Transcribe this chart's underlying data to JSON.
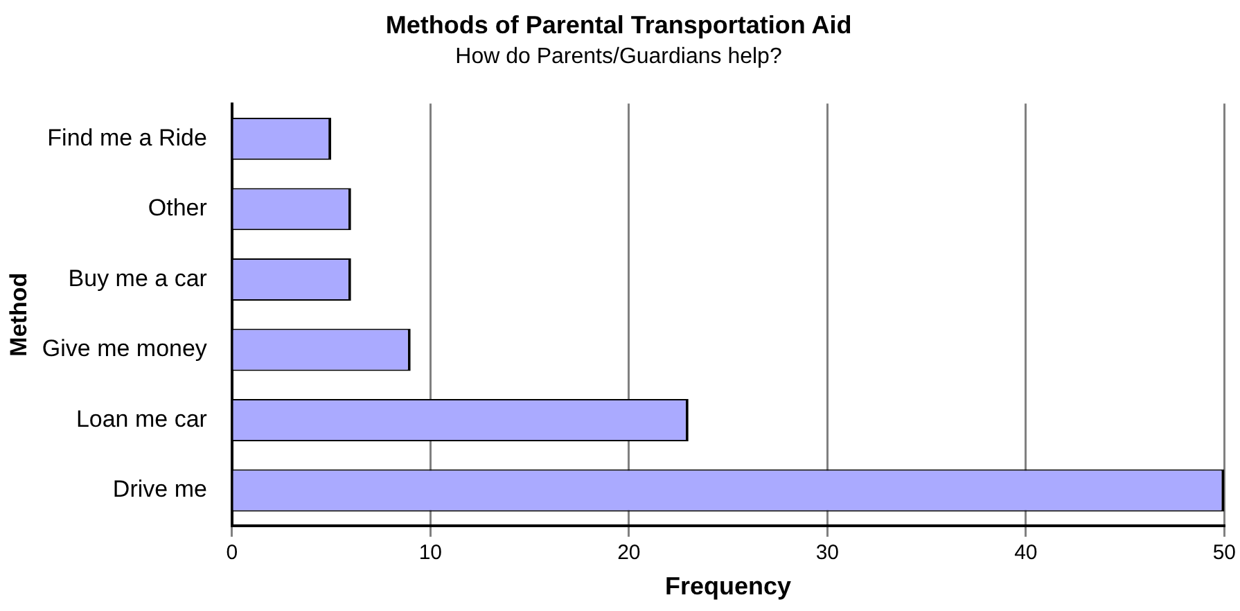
{
  "chart_data": {
    "type": "bar",
    "orientation": "horizontal",
    "title": "Methods of Parental Transportation Aid",
    "subtitle": "How do Parents/Guardians help?",
    "xlabel": "Frequency",
    "ylabel": "Method",
    "categories": [
      "Find me a Ride",
      "Other",
      "Buy me a car",
      "Give me money",
      "Loan me car",
      "Drive me"
    ],
    "values": [
      5,
      6,
      6,
      9,
      23,
      50
    ],
    "color": "#aaaaff",
    "xlim": [
      0,
      50
    ],
    "xticks": [
      0,
      10,
      20,
      30,
      40,
      50
    ],
    "grid": "x",
    "legend": false
  }
}
